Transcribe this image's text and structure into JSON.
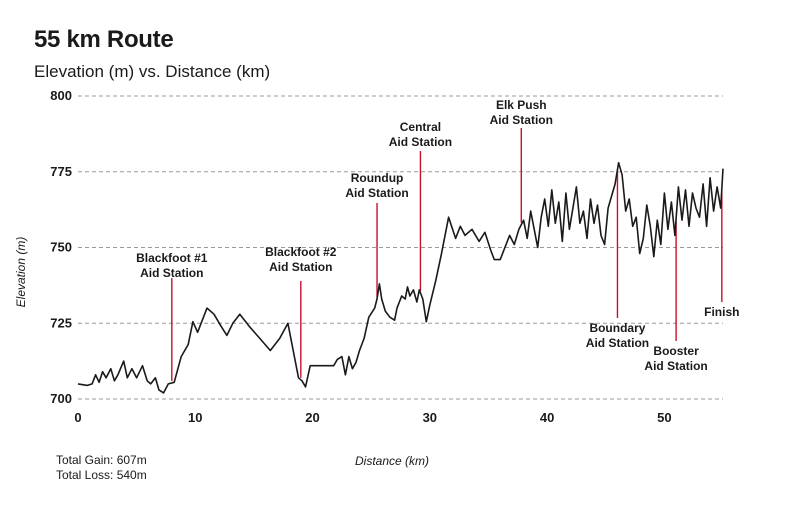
{
  "chart_data": {
    "type": "line",
    "title": "55 km Route",
    "subtitle": "Elevation (m) vs. Distance (km)",
    "xlabel": "Distance (km)",
    "ylabel": "Elevation (m)",
    "xlim": [
      0,
      55
    ],
    "ylim": [
      700,
      800
    ],
    "x_ticks": [
      0,
      10,
      20,
      30,
      40,
      50
    ],
    "y_ticks": [
      700,
      725,
      750,
      775,
      800
    ],
    "grid": "dashed horizontal",
    "series": [
      {
        "name": "Elevation",
        "points": [
          [
            0,
            705
          ],
          [
            0.8,
            704.5
          ],
          [
            1.2,
            705
          ],
          [
            1.5,
            708
          ],
          [
            1.8,
            705.5
          ],
          [
            2.1,
            709
          ],
          [
            2.4,
            707
          ],
          [
            2.8,
            710
          ],
          [
            3.1,
            706
          ],
          [
            3.4,
            708
          ],
          [
            3.9,
            712.5
          ],
          [
            4.2,
            707
          ],
          [
            4.6,
            710
          ],
          [
            5.0,
            707
          ],
          [
            5.5,
            711
          ],
          [
            5.9,
            706
          ],
          [
            6.2,
            705
          ],
          [
            6.6,
            707
          ],
          [
            6.9,
            703
          ],
          [
            7.3,
            702
          ],
          [
            7.7,
            705
          ],
          [
            8.2,
            705.5
          ],
          [
            8.8,
            714
          ],
          [
            9.4,
            718
          ],
          [
            9.8,
            725.5
          ],
          [
            10.2,
            722
          ],
          [
            10.6,
            726
          ],
          [
            11.0,
            730
          ],
          [
            11.6,
            728
          ],
          [
            12.2,
            724
          ],
          [
            12.7,
            721
          ],
          [
            13.2,
            725
          ],
          [
            13.8,
            728
          ],
          [
            14.6,
            724
          ],
          [
            15.5,
            720
          ],
          [
            16.4,
            716
          ],
          [
            17.2,
            720
          ],
          [
            17.9,
            725
          ],
          [
            18.4,
            715
          ],
          [
            18.8,
            707
          ],
          [
            19.1,
            706
          ],
          [
            19.4,
            704
          ],
          [
            19.8,
            711
          ],
          [
            21.0,
            711
          ],
          [
            21.8,
            711
          ],
          [
            22.1,
            713
          ],
          [
            22.5,
            714
          ],
          [
            22.8,
            708
          ],
          [
            23.1,
            714
          ],
          [
            23.4,
            710
          ],
          [
            23.7,
            712
          ],
          [
            24.0,
            716
          ],
          [
            24.4,
            720
          ],
          [
            24.8,
            727
          ],
          [
            25.3,
            730
          ],
          [
            25.5,
            733
          ],
          [
            25.7,
            738
          ],
          [
            25.9,
            733
          ],
          [
            26.2,
            729
          ],
          [
            26.6,
            727
          ],
          [
            27.0,
            726
          ],
          [
            27.2,
            730
          ],
          [
            27.6,
            734
          ],
          [
            27.9,
            733
          ],
          [
            28.1,
            737
          ],
          [
            28.3,
            734
          ],
          [
            28.6,
            736
          ],
          [
            28.9,
            732
          ],
          [
            29.1,
            736
          ],
          [
            29.4,
            733
          ],
          [
            29.7,
            725.5
          ],
          [
            30.0,
            731
          ],
          [
            30.5,
            739
          ],
          [
            31.0,
            748
          ],
          [
            31.6,
            760
          ],
          [
            32.2,
            753
          ],
          [
            32.6,
            757
          ],
          [
            33.0,
            754
          ],
          [
            33.6,
            756
          ],
          [
            34.2,
            752
          ],
          [
            34.7,
            755
          ],
          [
            35.2,
            749
          ],
          [
            35.5,
            746
          ],
          [
            36.0,
            746
          ],
          [
            36.4,
            750
          ],
          [
            36.8,
            754
          ],
          [
            37.2,
            751
          ],
          [
            37.6,
            756
          ],
          [
            38.0,
            759
          ],
          [
            38.3,
            753
          ],
          [
            38.6,
            762
          ],
          [
            38.9,
            756
          ],
          [
            39.2,
            750
          ],
          [
            39.5,
            760
          ],
          [
            39.8,
            766
          ],
          [
            40.1,
            757
          ],
          [
            40.4,
            769
          ],
          [
            40.7,
            758
          ],
          [
            41.0,
            765
          ],
          [
            41.3,
            752
          ],
          [
            41.6,
            768
          ],
          [
            41.9,
            756
          ],
          [
            42.2,
            763
          ],
          [
            42.5,
            770
          ],
          [
            42.8,
            758
          ],
          [
            43.1,
            762
          ],
          [
            43.4,
            753
          ],
          [
            43.7,
            766
          ],
          [
            44.0,
            758
          ],
          [
            44.3,
            764
          ],
          [
            44.6,
            754
          ],
          [
            44.9,
            751
          ],
          [
            45.2,
            763
          ],
          [
            45.5,
            767
          ],
          [
            45.8,
            771
          ],
          [
            46.1,
            778
          ],
          [
            46.4,
            774
          ],
          [
            46.7,
            762
          ],
          [
            47.0,
            766
          ],
          [
            47.3,
            757
          ],
          [
            47.6,
            760
          ],
          [
            47.9,
            748
          ],
          [
            48.2,
            753
          ],
          [
            48.5,
            764
          ],
          [
            48.8,
            757
          ],
          [
            49.1,
            747
          ],
          [
            49.4,
            759
          ],
          [
            49.7,
            751
          ],
          [
            50.0,
            768
          ],
          [
            50.3,
            756
          ],
          [
            50.6,
            765
          ],
          [
            50.9,
            754
          ],
          [
            51.2,
            770
          ],
          [
            51.5,
            759
          ],
          [
            51.8,
            769
          ],
          [
            52.1,
            757
          ],
          [
            52.4,
            768
          ],
          [
            52.7,
            763
          ],
          [
            53.0,
            760
          ],
          [
            53.3,
            771
          ],
          [
            53.6,
            757
          ],
          [
            53.9,
            773
          ],
          [
            54.2,
            762
          ],
          [
            54.5,
            770
          ],
          [
            54.8,
            763
          ],
          [
            55.0,
            776
          ]
        ]
      }
    ],
    "aid_stations": [
      {
        "lines": [
          "Blackfoot #1",
          "Aid Station"
        ],
        "km": 8.0,
        "label_position": "above"
      },
      {
        "lines": [
          "Blackfoot #2",
          "Aid Station"
        ],
        "km": 19.0,
        "label_position": "above"
      },
      {
        "lines": [
          "Roundup",
          "Aid Station"
        ],
        "km": 25.5,
        "label_position": "above"
      },
      {
        "lines": [
          "Central",
          "Aid Station"
        ],
        "km": 29.2,
        "label_position": "above"
      },
      {
        "lines": [
          "Elk Push",
          "Aid Station"
        ],
        "km": 37.8,
        "label_position": "above"
      },
      {
        "lines": [
          "Boundary",
          "Aid Station"
        ],
        "km": 46.0,
        "label_position": "below"
      },
      {
        "lines": [
          "Booster",
          "Aid Station"
        ],
        "km": 51.0,
        "label_position": "below"
      },
      {
        "lines": [
          "Finish"
        ],
        "km": 54.9,
        "label_position": "below"
      }
    ],
    "line_color": "#1a1a1a",
    "marker_color": "#c8102e",
    "grid_color": "#9a9a9a"
  },
  "summary": {
    "total_gain": "Total Gain: 607m",
    "total_loss": "Total Loss: 540m"
  }
}
